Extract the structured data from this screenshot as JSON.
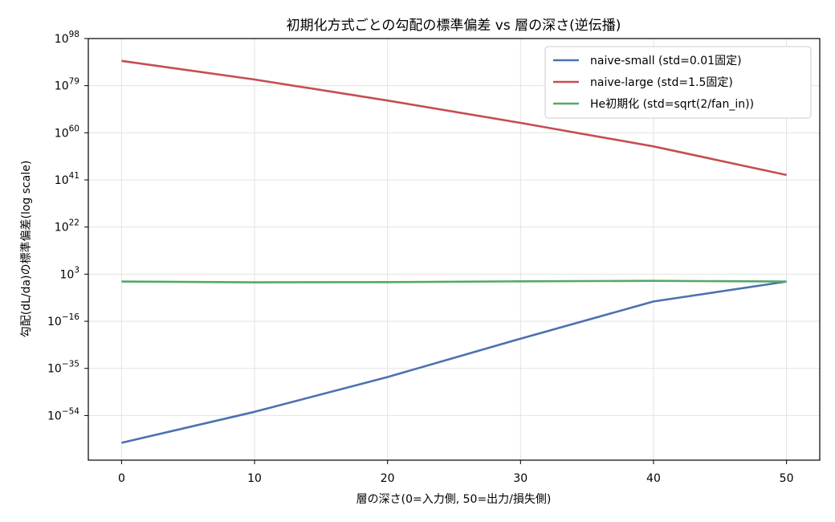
{
  "chart_data": {
    "type": "line",
    "title": "初期化方式ごとの勾配の標準偏差 vs 層の深さ(逆伝播)",
    "xlabel": "層の深さ(0=入力側, 50=出力/損失側)",
    "ylabel": "勾配(dL/da)の標準偏差(log scale)",
    "y_scale": "log",
    "xlim": [
      -2.5,
      52.5
    ],
    "ylim_exp": [
      -72,
      98
    ],
    "x_ticks": [
      0,
      10,
      20,
      30,
      40,
      50
    ],
    "y_tick_exponents": [
      -54,
      -35,
      -16,
      3,
      22,
      41,
      60,
      79,
      98
    ],
    "grid": true,
    "legend_position": "top-right",
    "series": [
      {
        "name": "naive-small (std=0.01固定)",
        "color": "#4c72b0",
        "x": [
          0,
          10,
          20,
          30,
          40,
          50
        ],
        "log10_y": [
          -65,
          -52.5,
          -38.5,
          -23,
          -8,
          0
        ]
      },
      {
        "name": "naive-large (std=1.5固定)",
        "color": "#c44e52",
        "x": [
          0,
          10,
          20,
          30,
          40,
          50
        ],
        "log10_y": [
          89,
          81.5,
          73,
          64,
          54.5,
          43
        ]
      },
      {
        "name": "He初期化 (std=sqrt(2/fan_in))",
        "color": "#55a868",
        "x": [
          0,
          10,
          20,
          30,
          40,
          50
        ],
        "log10_y": [
          0,
          -0.3,
          -0.2,
          0.1,
          0.3,
          0
        ]
      }
    ]
  }
}
